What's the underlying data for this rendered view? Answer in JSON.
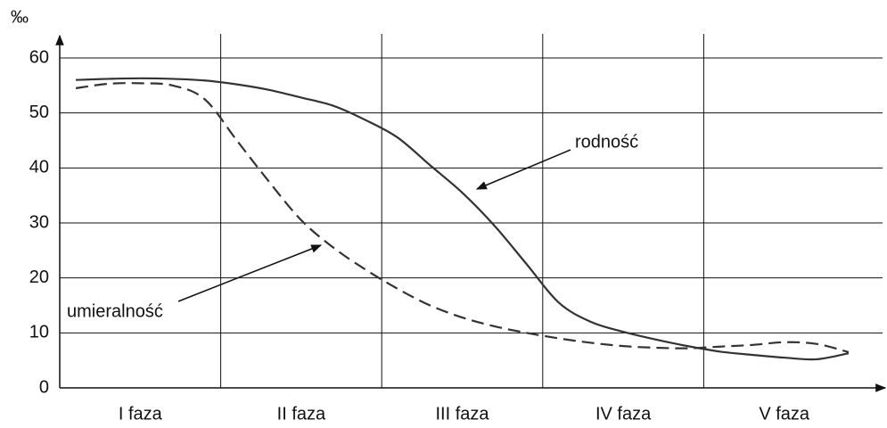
{
  "chart_data": {
    "type": "line",
    "y_label": "‰",
    "categories": [
      null,
      null,
      "I faza",
      null,
      null,
      null,
      null,
      "II faza",
      null,
      null,
      null,
      null,
      "III faza",
      null,
      null,
      null,
      null,
      "IV faza",
      null,
      null,
      null,
      null,
      "V faza",
      null,
      null
    ],
    "series": [
      {
        "name": "rodność",
        "color": "#333333",
        "style": "solid",
        "values": [
          56,
          56.2,
          56.3,
          56.2,
          55.9,
          55.2,
          54.2,
          52.8,
          51.3,
          48.7,
          45.5,
          40.5,
          35.5,
          29.5,
          22.5,
          15.5,
          12,
          10.2,
          8.8,
          7.6,
          6.6,
          6,
          5.5,
          5.2,
          6.3
        ]
      },
      {
        "name": "umieralność",
        "color": "#333333",
        "style": "dashed",
        "values": [
          54.5,
          55.3,
          55.4,
          55,
          52.5,
          45,
          37.5,
          30.5,
          25.5,
          21.5,
          18,
          15,
          12.8,
          11.2,
          10,
          9,
          8.2,
          7.6,
          7.3,
          7.2,
          7.5,
          7.8,
          8.3,
          8,
          6.5
        ]
      }
    ],
    "ylim": [
      0,
      60
    ],
    "yticks": [
      0,
      10,
      20,
      30,
      40,
      50,
      60
    ],
    "grid": true
  }
}
